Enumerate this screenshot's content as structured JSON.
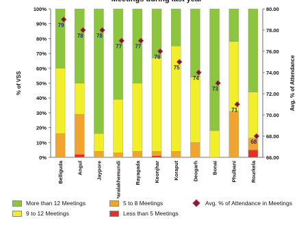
{
  "colors": {
    "more_than_12": "#8cc63e",
    "nine_to_12": "#f2ef2a",
    "five_to_8": "#f2a431",
    "less_than_5": "#e0322a",
    "marker_fill": "#6b1b45",
    "marker_border": "#d03030",
    "label_color": "#1f2a6b"
  },
  "chart_data": {
    "type": "bar",
    "stacked": true,
    "title": "Meetings during last year",
    "ylabel": "% of VSS",
    "y2label": "Avg. % of Attendance",
    "ylim": [
      0,
      100
    ],
    "y2lim": [
      66,
      80
    ],
    "yticks": [
      "0%",
      "10%",
      "20%",
      "30%",
      "40%",
      "50%",
      "60%",
      "70%",
      "80%",
      "90%",
      "100%"
    ],
    "y2ticks": [
      "66.00",
      "68.00",
      "70.00",
      "72.00",
      "74.00",
      "76.00",
      "78.00",
      "80.00"
    ],
    "categories": [
      "Belliguda",
      "Angul",
      "Jaypore",
      "Paralakhemundi",
      "Rayagada",
      "Keonjhar",
      "Koraput",
      "Deogarh",
      "Bonai",
      "Phulbani",
      "Rourkela"
    ],
    "series": [
      {
        "name": "Less than 5 Meetings",
        "color_key": "less_than_5",
        "values": [
          0,
          2,
          0,
          0,
          0,
          1,
          0,
          0,
          0,
          0,
          5
        ]
      },
      {
        "name": "5 to 8 Meetings",
        "color_key": "five_to_8",
        "values": [
          16,
          27,
          4,
          3,
          4,
          3,
          4,
          10,
          0,
          31,
          8
        ]
      },
      {
        "name": "9 to 12 Meetings",
        "color_key": "nine_to_12",
        "values": [
          44,
          21,
          12,
          36,
          46,
          63,
          71,
          44,
          18,
          47,
          31
        ]
      },
      {
        "name": "More than 12 Meetings",
        "color_key": "more_than_12",
        "values": [
          40,
          50,
          84,
          61,
          50,
          33,
          25,
          46,
          82,
          22,
          56
        ]
      }
    ],
    "line_series": {
      "name": "Avg. % of Attendance in Meetings",
      "axis": "right",
      "values": [
        79,
        78,
        78,
        77,
        77,
        76,
        75,
        74,
        73,
        71,
        68
      ],
      "labels": [
        "79",
        "78",
        "78",
        "77",
        "77",
        "76",
        "75",
        "74",
        "73",
        "71",
        "68"
      ]
    },
    "legend": [
      {
        "label": "More than 12 Meetings",
        "kind": "swatch",
        "color_key": "more_than_12"
      },
      {
        "label": "5 to 8 Meetings",
        "kind": "swatch",
        "color_key": "five_to_8"
      },
      {
        "label": "Avg. % of Attendance in Meetings",
        "kind": "diamond"
      },
      {
        "label": "9 to 12 Meetings",
        "kind": "swatch",
        "color_key": "nine_to_12"
      },
      {
        "label": "Less than 5 Meetings",
        "kind": "swatch",
        "color_key": "less_than_5"
      }
    ]
  }
}
